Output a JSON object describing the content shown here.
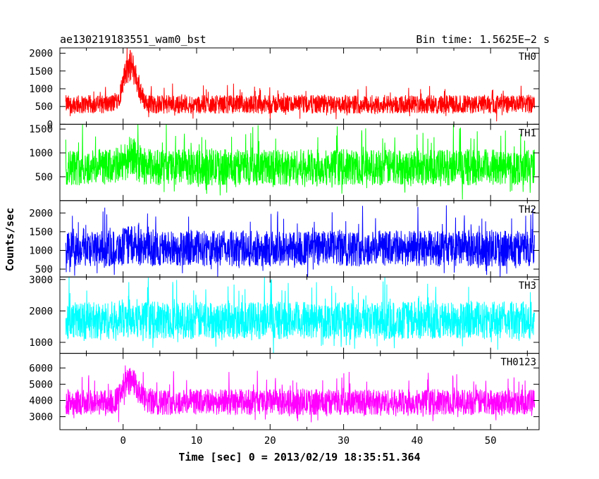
{
  "header": {
    "title": "ae130219183551_wam0_bst",
    "bin_time": "Bin time: 1.5625E−2 s"
  },
  "chart_data": {
    "type": "line",
    "title": "ae130219183551_wam0_bst",
    "xlabel": "Time [sec] 0 = 2013/02/19 18:35:51.364",
    "ylabel": "Counts/sec",
    "xlim": [
      -8.6,
      56.6
    ],
    "xticks": [
      0,
      10,
      20,
      30,
      40,
      50
    ],
    "data_x_range": [
      -7.8,
      56.0
    ],
    "burst_time": 1.0,
    "grid": false,
    "panels": [
      {
        "name": "TH0",
        "color": "#ff0000",
        "ylim": [
          0,
          2150
        ],
        "yticks": [
          0,
          500,
          1000,
          1500,
          2000
        ],
        "baseline_mean": 560,
        "noise_amplitude": 260,
        "peak_mean": 1650,
        "peak_noise": 450
      },
      {
        "name": "TH1",
        "color": "#00ff00",
        "ylim": [
          0,
          1600
        ],
        "yticks": [
          500,
          1000,
          1500
        ],
        "baseline_mean": 700,
        "noise_amplitude": 380,
        "peak_mean": 900,
        "peak_noise": 450
      },
      {
        "name": "TH2",
        "color": "#0000ff",
        "ylim": [
          290,
          2330
        ],
        "yticks": [
          500,
          1000,
          1500,
          2000
        ],
        "baseline_mean": 1050,
        "noise_amplitude": 480,
        "peak_mean": 1150,
        "peak_noise": 520
      },
      {
        "name": "TH3",
        "color": "#00ffff",
        "ylim": [
          650,
          3080
        ],
        "yticks": [
          1000,
          2000,
          3000
        ],
        "baseline_mean": 1700,
        "noise_amplitude": 600,
        "peak_mean": 1850,
        "peak_noise": 650
      },
      {
        "name": "TH0123",
        "color": "#ff00ff",
        "ylim": [
          2200,
          6900
        ],
        "yticks": [
          3000,
          4000,
          5000,
          6000
        ],
        "baseline_mean": 3900,
        "noise_amplitude": 800,
        "peak_mean": 5200,
        "peak_noise": 900
      }
    ]
  }
}
